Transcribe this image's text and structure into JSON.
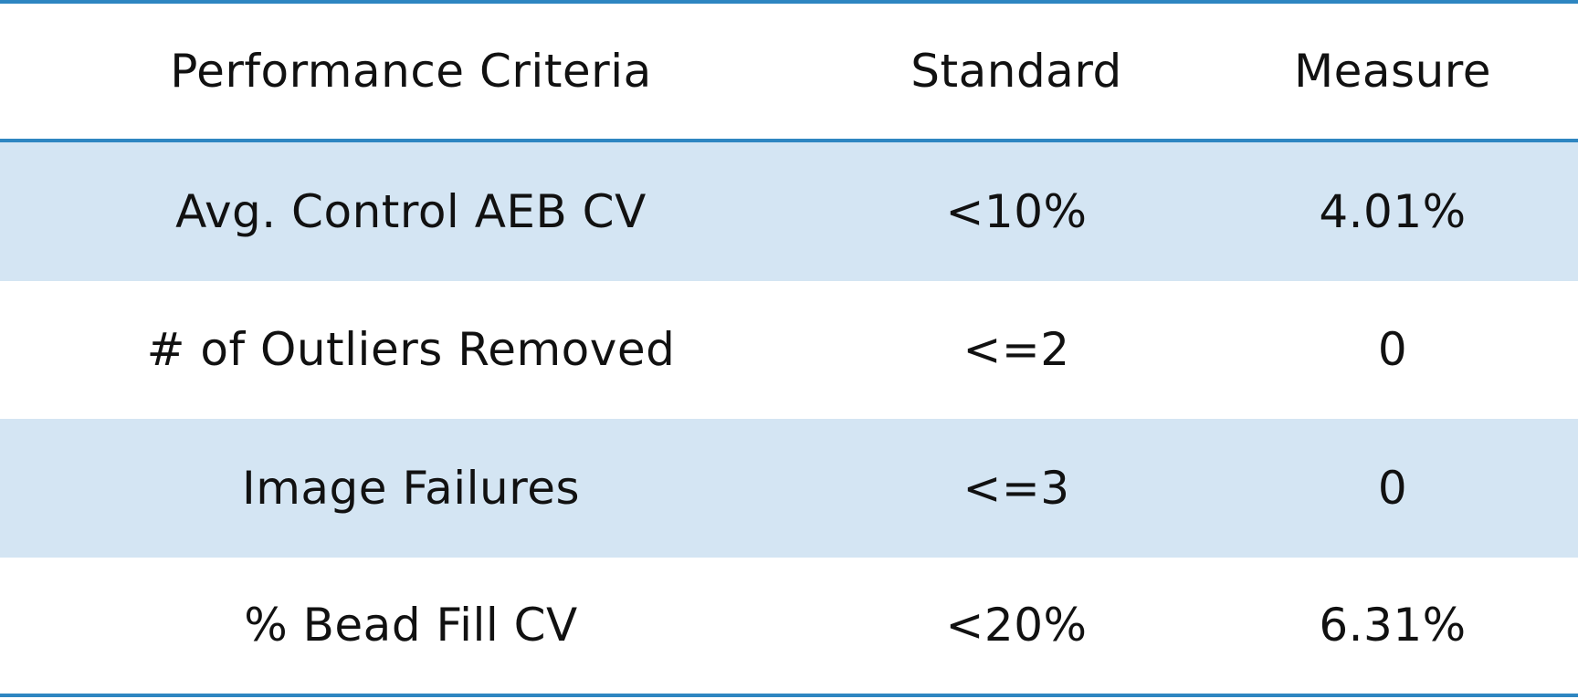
{
  "colors": {
    "rule": "#2e86c1",
    "band": "#d4e5f3",
    "text": "#111111",
    "background": "#ffffff"
  },
  "table": {
    "headers": {
      "criteria": "Performance Criteria",
      "standard": "Standard",
      "measure": "Measure"
    },
    "rows": [
      {
        "criteria": "Avg. Control AEB CV",
        "standard": "<10%",
        "measure": "4.01%",
        "banded": true
      },
      {
        "criteria": "# of Outliers Removed",
        "standard": "<=2",
        "measure": "0",
        "banded": false
      },
      {
        "criteria": "Image Failures",
        "standard": "<=3",
        "measure": "0",
        "banded": true
      },
      {
        "criteria": "% Bead Fill CV",
        "standard": "<20%",
        "measure": "6.31%",
        "banded": false
      }
    ]
  }
}
